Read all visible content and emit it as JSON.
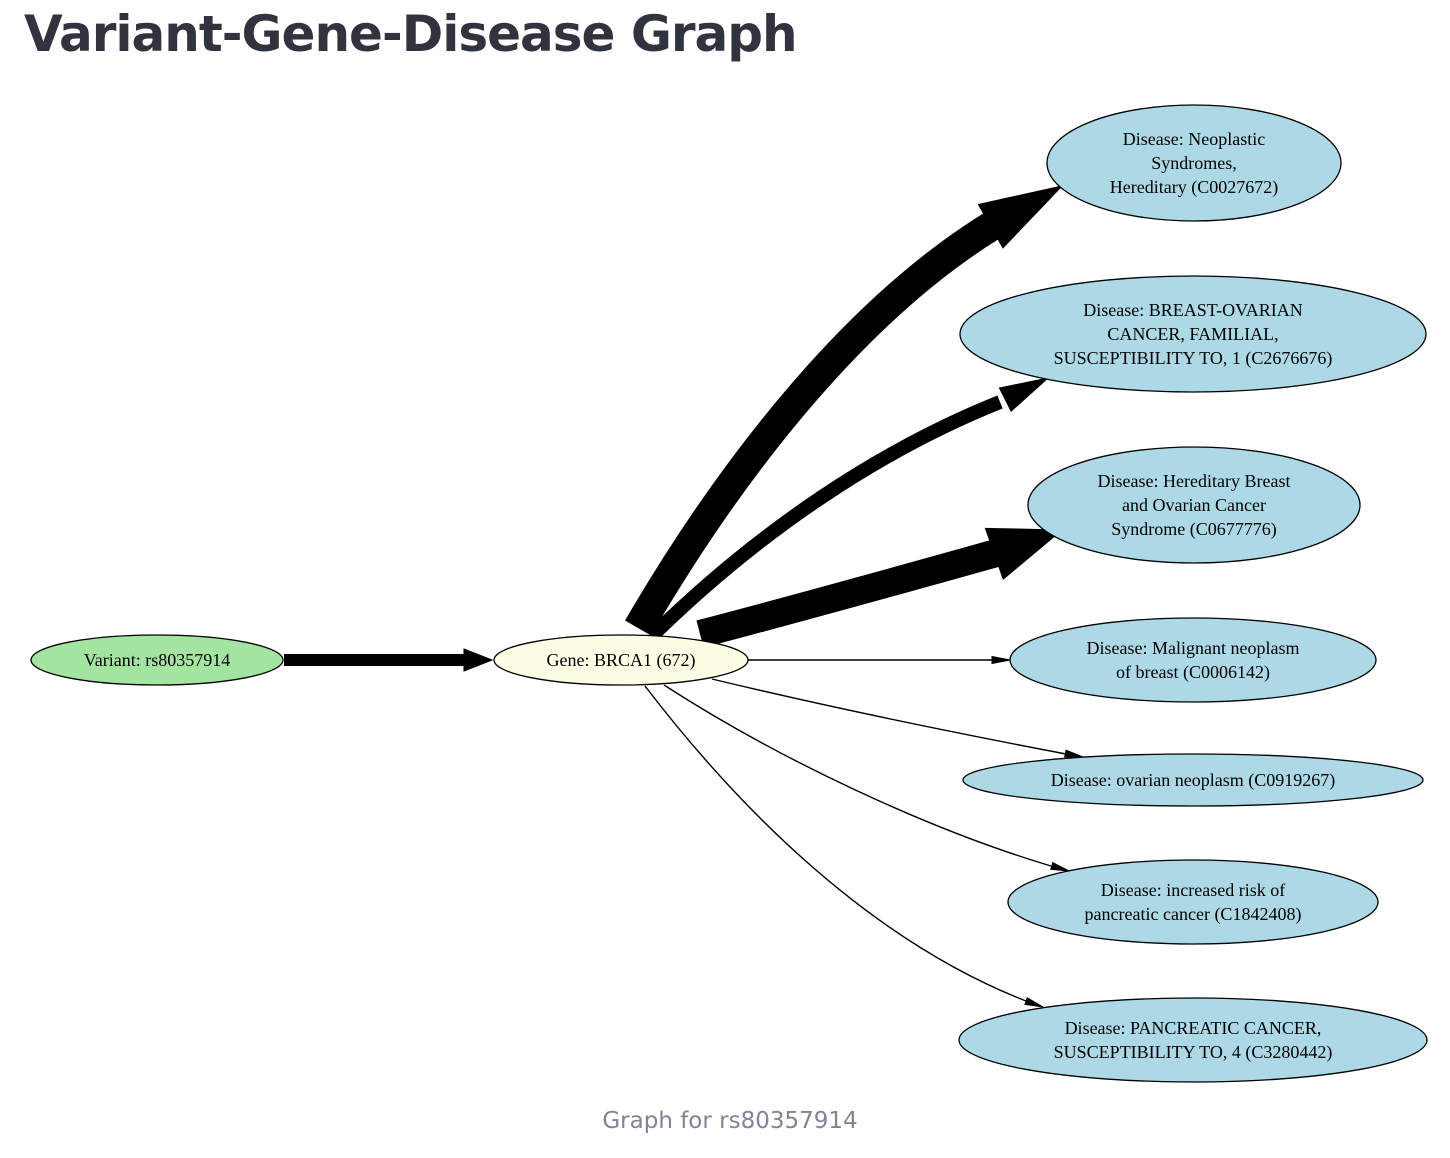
{
  "page": {
    "title": "Variant-Gene-Disease Graph",
    "caption": "Graph for rs80357914"
  },
  "colors": {
    "variant_fill": "#a3e4a0",
    "gene_fill": "#fdfde6",
    "disease_fill": "#add8e6",
    "edge": "#000000"
  },
  "graph": {
    "variant": {
      "lines": [
        "Variant: rs80357914"
      ]
    },
    "gene": {
      "lines": [
        "Gene: BRCA1 (672)"
      ]
    },
    "diseases": [
      {
        "lines": [
          "Disease: Neoplastic",
          "Syndromes,",
          "Hereditary (C0027672)"
        ]
      },
      {
        "lines": [
          "Disease: BREAST-OVARIAN",
          "CANCER, FAMILIAL,",
          "SUSCEPTIBILITY TO, 1 (C2676676)"
        ]
      },
      {
        "lines": [
          "Disease: Hereditary Breast",
          "and Ovarian Cancer",
          "Syndrome (C0677776)"
        ]
      },
      {
        "lines": [
          "Disease: Malignant neoplasm",
          "of breast (C0006142)"
        ]
      },
      {
        "lines": [
          "Disease: ovarian neoplasm (C0919267)"
        ]
      },
      {
        "lines": [
          "Disease: increased risk of",
          "pancreatic cancer (C1842408)"
        ]
      },
      {
        "lines": [
          "Disease: PANCREATIC CANCER,",
          "SUSCEPTIBILITY TO, 4 (C3280442)"
        ]
      }
    ]
  }
}
